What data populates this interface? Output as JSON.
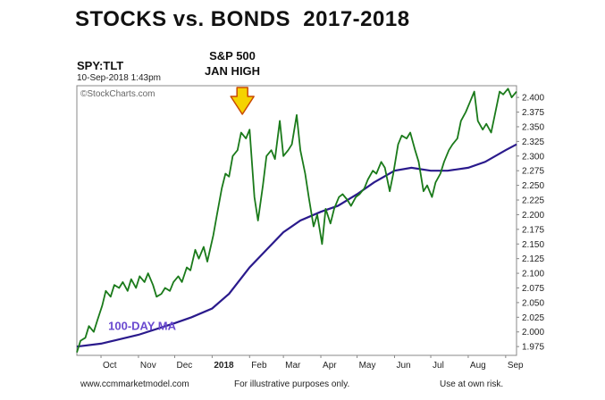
{
  "title": "STOCKS vs. BONDS  2017-2018",
  "ticker": "SPY:TLT",
  "date": "10-Sep-2018 1:43pm",
  "source": "©StockCharts.com",
  "note": [
    "S&P 500",
    "JAN HIGH"
  ],
  "footer": {
    "left": "www.ccmmarketmodel.com",
    "middle": "For illustrative purposes only.",
    "right": "Use at own risk."
  },
  "colors": {
    "price": "#1a7a1a",
    "ma": "#2a1a8c",
    "arrow": "#f5d300",
    "arrow_stroke": "#c94a00"
  },
  "chart_data": {
    "type": "line",
    "ylim": [
      1.96,
      2.42
    ],
    "ytick_labels": [
      "2.400",
      "2.375",
      "2.350",
      "2.325",
      "2.300",
      "2.275",
      "2.250",
      "2.225",
      "2.200",
      "2.175",
      "2.150",
      "2.125",
      "2.100",
      "2.075",
      "2.050",
      "2.025",
      "2.000",
      "1.975"
    ],
    "yticks": [
      2.4,
      2.375,
      2.35,
      2.325,
      2.3,
      2.275,
      2.25,
      2.225,
      2.2,
      2.175,
      2.15,
      2.125,
      2.1,
      2.075,
      2.05,
      2.025,
      2.0,
      1.975
    ],
    "xticks": [
      {
        "label": "Oct",
        "date": "2017-10-01"
      },
      {
        "label": "Nov",
        "date": "2017-11-01"
      },
      {
        "label": "Dec",
        "date": "2017-12-01"
      },
      {
        "label": "2018",
        "date": "2018-01-01",
        "bold": true
      },
      {
        "label": "Feb",
        "date": "2018-02-01"
      },
      {
        "label": "Mar",
        "date": "2018-03-01"
      },
      {
        "label": "Apr",
        "date": "2018-04-01"
      },
      {
        "label": "May",
        "date": "2018-05-01"
      },
      {
        "label": "Jun",
        "date": "2018-06-01"
      },
      {
        "label": "Jul",
        "date": "2018-07-01"
      },
      {
        "label": "Aug",
        "date": "2018-08-01"
      },
      {
        "label": "Sep",
        "date": "2018-09-01"
      }
    ],
    "xlim": [
      "2017-09-11",
      "2018-09-10"
    ],
    "series": [
      {
        "name": "SPY:TLT",
        "points": [
          [
            "2017-09-11",
            1.965
          ],
          [
            "2017-09-14",
            1.985
          ],
          [
            "2017-09-18",
            1.99
          ],
          [
            "2017-09-21",
            2.01
          ],
          [
            "2017-09-25",
            2.0
          ],
          [
            "2017-09-28",
            2.02
          ],
          [
            "2017-10-02",
            2.045
          ],
          [
            "2017-10-05",
            2.07
          ],
          [
            "2017-10-09",
            2.06
          ],
          [
            "2017-10-12",
            2.08
          ],
          [
            "2017-10-16",
            2.075
          ],
          [
            "2017-10-19",
            2.085
          ],
          [
            "2017-10-23",
            2.07
          ],
          [
            "2017-10-26",
            2.09
          ],
          [
            "2017-10-30",
            2.075
          ],
          [
            "2017-11-02",
            2.095
          ],
          [
            "2017-11-06",
            2.085
          ],
          [
            "2017-11-09",
            2.1
          ],
          [
            "2017-11-13",
            2.08
          ],
          [
            "2017-11-16",
            2.06
          ],
          [
            "2017-11-20",
            2.065
          ],
          [
            "2017-11-23",
            2.075
          ],
          [
            "2017-11-27",
            2.07
          ],
          [
            "2017-11-30",
            2.085
          ],
          [
            "2017-12-04",
            2.095
          ],
          [
            "2017-12-07",
            2.085
          ],
          [
            "2017-12-11",
            2.11
          ],
          [
            "2017-12-14",
            2.105
          ],
          [
            "2017-12-18",
            2.14
          ],
          [
            "2017-12-21",
            2.125
          ],
          [
            "2017-12-25",
            2.145
          ],
          [
            "2017-12-28",
            2.12
          ],
          [
            "2018-01-02",
            2.165
          ],
          [
            "2018-01-05",
            2.2
          ],
          [
            "2018-01-09",
            2.245
          ],
          [
            "2018-01-12",
            2.27
          ],
          [
            "2018-01-15",
            2.265
          ],
          [
            "2018-01-18",
            2.3
          ],
          [
            "2018-01-22",
            2.31
          ],
          [
            "2018-01-25",
            2.34
          ],
          [
            "2018-01-29",
            2.33
          ],
          [
            "2018-02-01",
            2.345
          ],
          [
            "2018-02-05",
            2.23
          ],
          [
            "2018-02-08",
            2.19
          ],
          [
            "2018-02-12",
            2.25
          ],
          [
            "2018-02-15",
            2.3
          ],
          [
            "2018-02-19",
            2.31
          ],
          [
            "2018-02-22",
            2.295
          ],
          [
            "2018-02-26",
            2.36
          ],
          [
            "2018-03-01",
            2.3
          ],
          [
            "2018-03-05",
            2.31
          ],
          [
            "2018-03-08",
            2.32
          ],
          [
            "2018-03-12",
            2.37
          ],
          [
            "2018-03-15",
            2.31
          ],
          [
            "2018-03-19",
            2.27
          ],
          [
            "2018-03-22",
            2.23
          ],
          [
            "2018-03-26",
            2.18
          ],
          [
            "2018-03-29",
            2.2
          ],
          [
            "2018-04-02",
            2.15
          ],
          [
            "2018-04-05",
            2.21
          ],
          [
            "2018-04-09",
            2.185
          ],
          [
            "2018-04-12",
            2.21
          ],
          [
            "2018-04-16",
            2.23
          ],
          [
            "2018-04-19",
            2.235
          ],
          [
            "2018-04-23",
            2.225
          ],
          [
            "2018-04-26",
            2.215
          ],
          [
            "2018-04-30",
            2.23
          ],
          [
            "2018-05-03",
            2.235
          ],
          [
            "2018-05-07",
            2.245
          ],
          [
            "2018-05-10",
            2.26
          ],
          [
            "2018-05-14",
            2.275
          ],
          [
            "2018-05-17",
            2.27
          ],
          [
            "2018-05-21",
            2.29
          ],
          [
            "2018-05-24",
            2.28
          ],
          [
            "2018-05-28",
            2.24
          ],
          [
            "2018-05-31",
            2.27
          ],
          [
            "2018-06-04",
            2.32
          ],
          [
            "2018-06-07",
            2.335
          ],
          [
            "2018-06-11",
            2.33
          ],
          [
            "2018-06-14",
            2.34
          ],
          [
            "2018-06-18",
            2.31
          ],
          [
            "2018-06-21",
            2.29
          ],
          [
            "2018-06-25",
            2.24
          ],
          [
            "2018-06-28",
            2.25
          ],
          [
            "2018-07-02",
            2.23
          ],
          [
            "2018-07-05",
            2.255
          ],
          [
            "2018-07-09",
            2.27
          ],
          [
            "2018-07-12",
            2.29
          ],
          [
            "2018-07-16",
            2.31
          ],
          [
            "2018-07-19",
            2.32
          ],
          [
            "2018-07-23",
            2.33
          ],
          [
            "2018-07-26",
            2.36
          ],
          [
            "2018-07-30",
            2.375
          ],
          [
            "2018-08-02",
            2.39
          ],
          [
            "2018-08-06",
            2.41
          ],
          [
            "2018-08-09",
            2.36
          ],
          [
            "2018-08-13",
            2.345
          ],
          [
            "2018-08-16",
            2.355
          ],
          [
            "2018-08-20",
            2.34
          ],
          [
            "2018-08-23",
            2.37
          ],
          [
            "2018-08-27",
            2.41
          ],
          [
            "2018-08-30",
            2.405
          ],
          [
            "2018-09-03",
            2.415
          ],
          [
            "2018-09-06",
            2.4
          ],
          [
            "2018-09-10",
            2.41
          ]
        ]
      },
      {
        "name": "100-DAY MA",
        "points": [
          [
            "2017-09-11",
            1.975
          ],
          [
            "2017-10-01",
            1.98
          ],
          [
            "2017-11-01",
            1.995
          ],
          [
            "2017-12-01",
            2.015
          ],
          [
            "2017-12-15",
            2.025
          ],
          [
            "2018-01-01",
            2.04
          ],
          [
            "2018-01-15",
            2.065
          ],
          [
            "2018-02-01",
            2.11
          ],
          [
            "2018-02-15",
            2.14
          ],
          [
            "2018-03-01",
            2.17
          ],
          [
            "2018-03-15",
            2.19
          ],
          [
            "2018-04-01",
            2.205
          ],
          [
            "2018-04-15",
            2.215
          ],
          [
            "2018-05-01",
            2.235
          ],
          [
            "2018-05-15",
            2.255
          ],
          [
            "2018-06-01",
            2.275
          ],
          [
            "2018-06-15",
            2.28
          ],
          [
            "2018-07-01",
            2.275
          ],
          [
            "2018-07-15",
            2.275
          ],
          [
            "2018-08-01",
            2.28
          ],
          [
            "2018-08-15",
            2.29
          ],
          [
            "2018-09-01",
            2.31
          ],
          [
            "2018-09-10",
            2.32
          ]
        ]
      }
    ],
    "annotation": {
      "label": "S&P 500 JAN HIGH",
      "date": "2018-01-26"
    },
    "grid": false,
    "legend": "none"
  }
}
